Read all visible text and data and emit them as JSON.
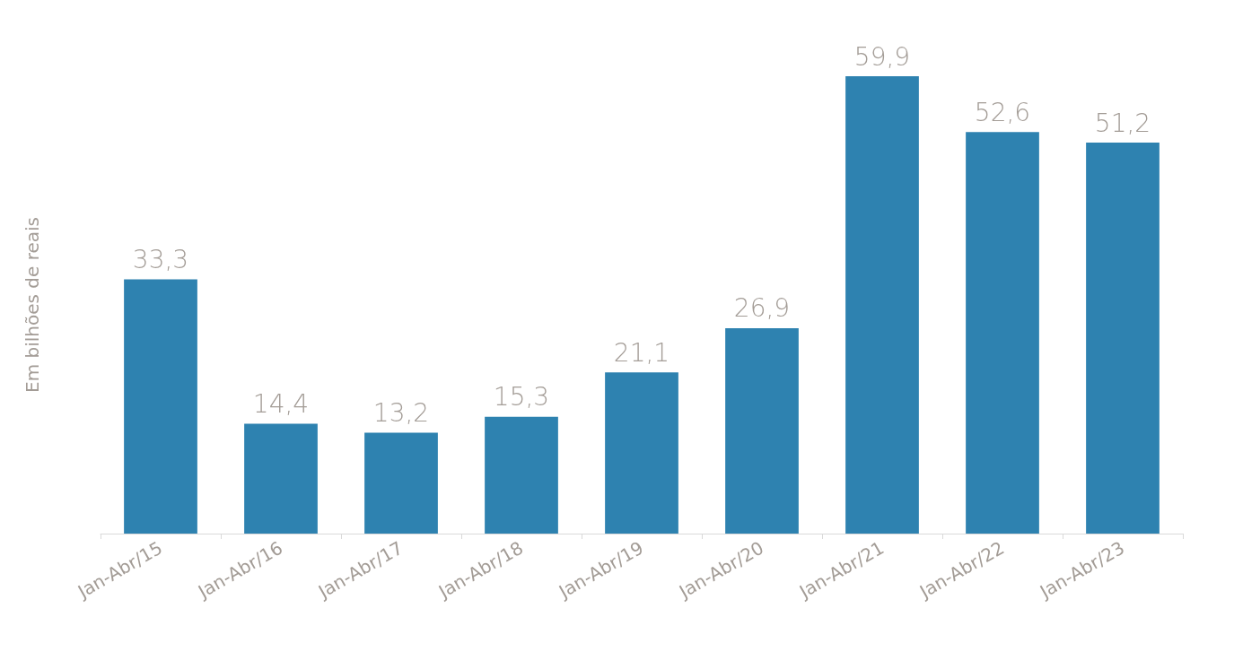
{
  "chart_data": {
    "type": "bar",
    "ylabel": "Em bilhões de reais",
    "categories": [
      "Jan-Abr/15",
      "Jan-Abr/16",
      "Jan-Abr/17",
      "Jan-Abr/18",
      "Jan-Abr/19",
      "Jan-Abr/20",
      "Jan-Abr/21",
      "Jan-Abr/22",
      "Jan-Abr/23"
    ],
    "values": [
      33.3,
      14.4,
      13.2,
      15.3,
      21.1,
      26.9,
      59.9,
      52.6,
      51.2
    ],
    "value_labels": [
      "33,3",
      "14,4",
      "13,2",
      "15,3",
      "21,1",
      "26,9",
      "59,9",
      "52,6",
      "51,2"
    ],
    "color": "#2e82b0"
  }
}
